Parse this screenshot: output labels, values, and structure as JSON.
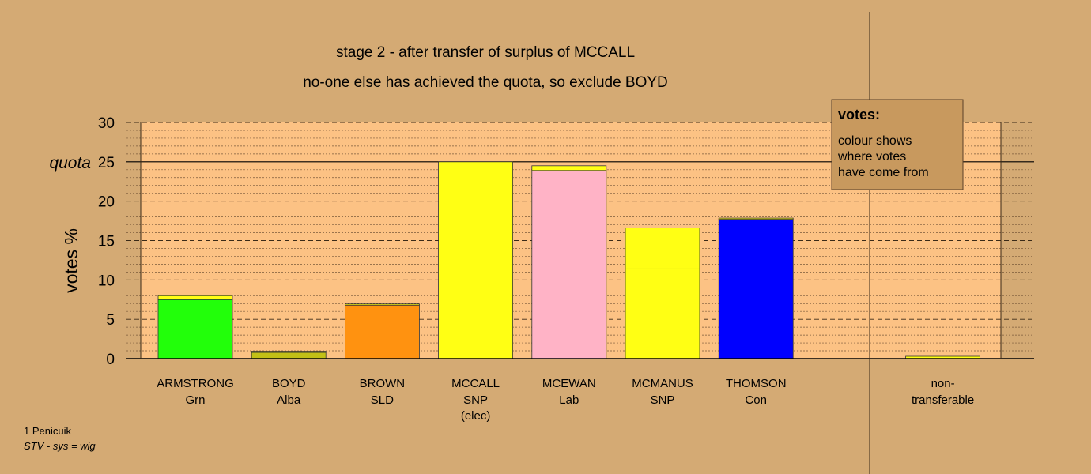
{
  "chart_data": {
    "type": "bar",
    "title": "stage 2 - after transfer of surplus of MCCALL",
    "subtitle": "no-one else has achieved the quota, so exclude BOYD",
    "ylabel": "votes %",
    "ylim": [
      0,
      30
    ],
    "yticks": [
      0,
      5,
      10,
      15,
      20,
      25,
      30
    ],
    "quota": 25,
    "quota_label": "quota",
    "grid": true,
    "categories": [
      {
        "name": "ARMSTRONG",
        "party": "Grn",
        "note": "",
        "segments": [
          {
            "value": 7.5,
            "color": "#22ff0a"
          },
          {
            "value": 0.5,
            "color": "#ffff14"
          }
        ]
      },
      {
        "name": "BOYD",
        "party": "Alba",
        "note": "",
        "segments": [
          {
            "value": 0.8,
            "color": "#c2c016"
          },
          {
            "value": 0.15,
            "color": "#ffff14"
          }
        ]
      },
      {
        "name": "BROWN",
        "party": "SLD",
        "note": "",
        "segments": [
          {
            "value": 6.8,
            "color": "#ff9210"
          },
          {
            "value": 0.15,
            "color": "#ffff14"
          }
        ]
      },
      {
        "name": "MCCALL",
        "party": "SNP",
        "note": "(elec)",
        "segments": [
          {
            "value": 25.0,
            "color": "#ffff14"
          }
        ]
      },
      {
        "name": "MCEWAN",
        "party": "Lab",
        "note": "",
        "segments": [
          {
            "value": 23.9,
            "color": "#ffb3c6"
          },
          {
            "value": 0.6,
            "color": "#ffff14"
          }
        ]
      },
      {
        "name": "MCMANUS",
        "party": "SNP",
        "note": "",
        "segments": [
          {
            "value": 11.4,
            "color": "#ffff14"
          },
          {
            "value": 5.2,
            "color": "#ffff14"
          }
        ]
      },
      {
        "name": "THOMSON",
        "party": "Con",
        "note": "",
        "segments": [
          {
            "value": 17.7,
            "color": "#0000ff"
          },
          {
            "value": 0.15,
            "color": "#ffff14"
          }
        ]
      },
      {
        "name": "",
        "party": "",
        "note": "",
        "segments": []
      },
      {
        "name": "non-",
        "party": "transferable",
        "note": "",
        "segments": [
          {
            "value": 0.3,
            "color": "#ffff14"
          }
        ]
      }
    ]
  },
  "legend": {
    "heading": "votes:",
    "lines": [
      "colour shows",
      "where votes",
      "have come from"
    ],
    "placement": "top-right"
  },
  "footer": {
    "ward": "1 Penicuik",
    "system": "STV - sys = wig"
  },
  "colors": {
    "background": "#d4aa74",
    "plot_area": "#fcc284",
    "legend_box": "#c8995e"
  }
}
